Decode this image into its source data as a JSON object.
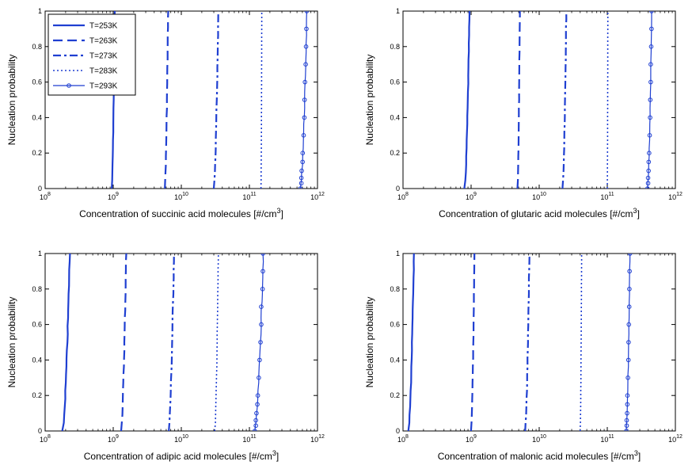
{
  "chart_data": [
    {
      "type": "line",
      "xlabel": "Concentration of succinic acid molecules [#/cm",
      "xlabel_sup": "3",
      "xlabel_end": "]",
      "ylabel": "Nucleation probability",
      "xscale": "log",
      "xlim": [
        100000000,
        1000000000000
      ],
      "ylim": [
        0,
        1
      ],
      "xticks": [
        {
          "base": "10",
          "exp": "8"
        },
        {
          "base": "10",
          "exp": "9"
        },
        {
          "base": "10",
          "exp": "10"
        },
        {
          "base": "10",
          "exp": "11"
        },
        {
          "base": "10",
          "exp": "12"
        }
      ],
      "yticks": [
        "0",
        "0.2",
        "0.4",
        "0.6",
        "0.8",
        "1"
      ],
      "legend": "top-left",
      "series": [
        {
          "name": "T=253K",
          "x_start": 950000000,
          "x_end": 1050000000
        },
        {
          "name": "T=263K",
          "x_start": 5700000000,
          "x_end": 6400000000
        },
        {
          "name": "T=273K",
          "x_start": 30000000000,
          "x_end": 35000000000
        },
        {
          "name": "T=283K",
          "x_start": 148000000000,
          "x_end": 152000000000
        },
        {
          "name": "T=293K",
          "x_start": 560000000000,
          "x_end": 700000000000
        }
      ]
    },
    {
      "type": "line",
      "xlabel": "Concentration of glutaric acid molecules [#/cm",
      "xlabel_sup": "3",
      "xlabel_end": "]",
      "ylabel": "Nucleation probability",
      "xscale": "log",
      "xlim": [
        100000000,
        1000000000000
      ],
      "ylim": [
        0,
        1
      ],
      "xticks": [
        {
          "base": "10",
          "exp": "8"
        },
        {
          "base": "10",
          "exp": "9"
        },
        {
          "base": "10",
          "exp": "10"
        },
        {
          "base": "10",
          "exp": "11"
        },
        {
          "base": "10",
          "exp": "12"
        }
      ],
      "yticks": [
        "0",
        "0.2",
        "0.4",
        "0.6",
        "0.8",
        "1"
      ],
      "series": [
        {
          "name": "T=253K",
          "x_start": 800000000,
          "x_end": 950000000
        },
        {
          "name": "T=263K",
          "x_start": 4800000000,
          "x_end": 5200000000
        },
        {
          "name": "T=273K",
          "x_start": 22000000000,
          "x_end": 25000000000
        },
        {
          "name": "T=283K",
          "x_start": 100000000000,
          "x_end": 102000000000
        },
        {
          "name": "T=293K",
          "x_start": 390000000000,
          "x_end": 450000000000
        }
      ]
    },
    {
      "type": "line",
      "xlabel": "Concentration of adipic acid molecules [#/cm",
      "xlabel_sup": "3",
      "xlabel_end": "]",
      "ylabel": "Nucleation probability",
      "xscale": "log",
      "xlim": [
        100000000,
        1000000000000
      ],
      "ylim": [
        0,
        1
      ],
      "xticks": [
        {
          "base": "10",
          "exp": "8"
        },
        {
          "base": "10",
          "exp": "9"
        },
        {
          "base": "10",
          "exp": "10"
        },
        {
          "base": "10",
          "exp": "11"
        },
        {
          "base": "10",
          "exp": "12"
        }
      ],
      "yticks": [
        "0",
        "0.2",
        "0.4",
        "0.6",
        "0.8",
        "1"
      ],
      "series": [
        {
          "name": "T=253K",
          "x_start": 180000000,
          "x_end": 230000000
        },
        {
          "name": "T=263K",
          "x_start": 1300000000,
          "x_end": 1550000000
        },
        {
          "name": "T=273K",
          "x_start": 6500000000,
          "x_end": 7800000000
        },
        {
          "name": "T=283K",
          "x_start": 31000000000,
          "x_end": 35000000000
        },
        {
          "name": "T=293K",
          "x_start": 120000000000,
          "x_end": 160000000000
        }
      ]
    },
    {
      "type": "line",
      "xlabel": "Concentration of malonic acid molecules [#/cm",
      "xlabel_sup": "3",
      "xlabel_end": "]",
      "ylabel": "Nucleation probability",
      "xscale": "log",
      "xlim": [
        100000000,
        1000000000000
      ],
      "ylim": [
        0,
        1
      ],
      "xticks": [
        {
          "base": "10",
          "exp": "8"
        },
        {
          "base": "10",
          "exp": "9"
        },
        {
          "base": "10",
          "exp": "10"
        },
        {
          "base": "10",
          "exp": "11"
        },
        {
          "base": "10",
          "exp": "12"
        }
      ],
      "yticks": [
        "0",
        "0.2",
        "0.4",
        "0.6",
        "0.8",
        "1"
      ],
      "series": [
        {
          "name": "T=253K",
          "x_start": 120000000,
          "x_end": 145000000
        },
        {
          "name": "T=263K",
          "x_start": 1000000000,
          "x_end": 1120000000
        },
        {
          "name": "T=273K",
          "x_start": 6200000000,
          "x_end": 7200000000
        },
        {
          "name": "T=283K",
          "x_start": 40000000000,
          "x_end": 42000000000
        },
        {
          "name": "T=293K",
          "x_start": 190000000000,
          "x_end": 215000000000
        }
      ]
    }
  ],
  "style": {
    "line_color": "#1f3fd1",
    "axis_color": "#000000",
    "background": "#ffffff"
  }
}
